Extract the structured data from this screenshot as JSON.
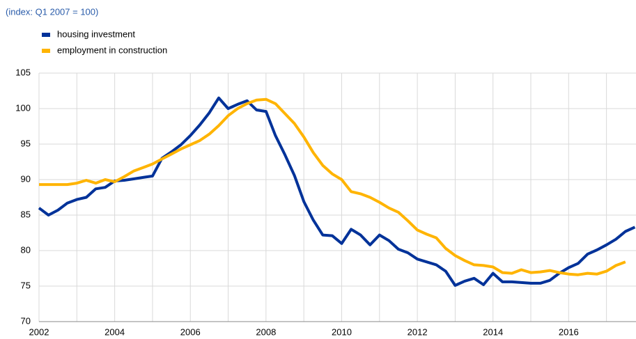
{
  "chart_data": {
    "type": "line",
    "subtitle": "(index: Q1 2007 = 100)",
    "xlim": [
      2002,
      2017.78
    ],
    "ylim": [
      70,
      105
    ],
    "xticks": [
      2002,
      2004,
      2006,
      2008,
      2010,
      2012,
      2014,
      2016
    ],
    "xminorticks": [
      2003,
      2005,
      2007,
      2009,
      2011,
      2013,
      2015,
      2017
    ],
    "yticks": [
      70,
      75,
      80,
      85,
      90,
      95,
      100,
      105
    ],
    "grid": true,
    "series": [
      {
        "name": "housing investment",
        "color": "#003299",
        "x": [
          2002,
          2002.25,
          2002.5,
          2002.75,
          2003,
          2003.25,
          2003.5,
          2003.75,
          2004,
          2004.25,
          2004.5,
          2004.75,
          2005,
          2005.25,
          2005.5,
          2005.75,
          2006,
          2006.25,
          2006.5,
          2006.75,
          2007,
          2007.25,
          2007.5,
          2007.75,
          2008,
          2008.25,
          2008.5,
          2008.75,
          2009,
          2009.25,
          2009.5,
          2009.75,
          2010,
          2010.25,
          2010.5,
          2010.75,
          2011,
          2011.25,
          2011.5,
          2011.75,
          2012,
          2012.25,
          2012.5,
          2012.75,
          2013,
          2013.25,
          2013.5,
          2013.75,
          2014,
          2014.25,
          2014.5,
          2014.75,
          2015,
          2015.25,
          2015.5,
          2015.75,
          2016,
          2016.25,
          2016.5,
          2016.75,
          2017,
          2017.25,
          2017.5,
          2017.75
        ],
        "values": [
          86.0,
          85.0,
          85.7,
          86.7,
          87.2,
          87.5,
          88.7,
          88.9,
          89.8,
          89.9,
          90.1,
          90.3,
          90.5,
          93.0,
          93.9,
          94.9,
          96.2,
          97.7,
          99.4,
          101.5,
          100.0,
          100.6,
          101.1,
          99.8,
          99.6,
          96.2,
          93.5,
          90.6,
          86.9,
          84.3,
          82.2,
          82.1,
          81.0,
          83.0,
          82.2,
          80.8,
          82.2,
          81.4,
          80.2,
          79.7,
          78.8,
          78.4,
          78.0,
          77.1,
          75.1,
          75.7,
          76.1,
          75.2,
          76.8,
          75.6,
          75.6,
          75.5,
          75.4,
          75.4,
          75.8,
          76.8,
          77.6,
          78.2,
          79.5,
          80.1,
          80.8,
          81.6,
          82.7,
          83.3
        ]
      },
      {
        "name": "employment in construction",
        "color": "#ffb400",
        "x": [
          2002,
          2002.25,
          2002.5,
          2002.75,
          2003,
          2003.25,
          2003.5,
          2003.75,
          2004,
          2004.25,
          2004.5,
          2004.75,
          2005,
          2005.25,
          2005.5,
          2005.75,
          2006,
          2006.25,
          2006.5,
          2006.75,
          2007,
          2007.25,
          2007.5,
          2007.75,
          2008,
          2008.25,
          2008.5,
          2008.75,
          2009,
          2009.25,
          2009.5,
          2009.75,
          2010,
          2010.25,
          2010.5,
          2010.75,
          2011,
          2011.25,
          2011.5,
          2011.75,
          2012,
          2012.25,
          2012.5,
          2012.75,
          2013,
          2013.25,
          2013.5,
          2013.75,
          2014,
          2014.25,
          2014.5,
          2014.75,
          2015,
          2015.25,
          2015.5,
          2015.75,
          2016,
          2016.25,
          2016.5,
          2016.75,
          2017,
          2017.25,
          2017.5
        ],
        "values": [
          89.3,
          89.3,
          89.3,
          89.3,
          89.5,
          89.9,
          89.5,
          90.0,
          89.7,
          90.4,
          91.2,
          91.7,
          92.2,
          92.9,
          93.6,
          94.3,
          94.9,
          95.5,
          96.4,
          97.6,
          99.0,
          100.0,
          100.7,
          101.2,
          101.3,
          100.7,
          99.3,
          97.9,
          96.0,
          93.8,
          92.0,
          90.8,
          90.0,
          88.3,
          88.0,
          87.5,
          86.8,
          86.0,
          85.4,
          84.2,
          82.9,
          82.3,
          81.8,
          80.3,
          79.3,
          78.6,
          78.0,
          77.9,
          77.7,
          76.9,
          76.8,
          77.3,
          76.9,
          77.0,
          77.2,
          76.9,
          76.7,
          76.6,
          76.8,
          76.7,
          77.1,
          77.9,
          78.4
        ]
      }
    ]
  }
}
